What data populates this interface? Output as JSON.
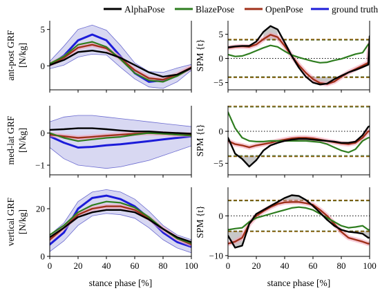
{
  "legend": [
    {
      "label": "AlphaPose",
      "color": "#000000"
    },
    {
      "label": "BlazePose",
      "color": "#2e7d1f"
    },
    {
      "label": "OpenPose",
      "color": "#a0301a"
    },
    {
      "label": "ground truth",
      "color": "#1c1cd9"
    }
  ],
  "colors": {
    "alphapose": "#000000",
    "blazepose": "#2e7d1f",
    "openpose": "#a0301a",
    "ground_truth": "#1c1cd9",
    "threshold": "#556b2f",
    "sig_fill": "#c8c8c8",
    "band_fill": "#b8b8e8"
  },
  "xlabel": "stance phase [%]",
  "chart_data": [
    {
      "type": "line",
      "panel": "ant-post GRF",
      "ylabel_lines": [
        "ant-post GRF",
        "[N/kg]"
      ],
      "xlim": [
        0,
        100
      ],
      "ylim": [
        -3.3,
        6.2
      ],
      "xticks": [
        0,
        20,
        40,
        60,
        80,
        100
      ],
      "yticks": [
        0,
        5
      ],
      "ytick_labels": [
        "0",
        "5"
      ],
      "x": [
        0,
        10,
        20,
        30,
        40,
        50,
        60,
        70,
        80,
        90,
        100
      ],
      "series": [
        {
          "name": "ground truth",
          "values": [
            0.1,
            1.4,
            3.5,
            4.3,
            3.5,
            1.3,
            -1.0,
            -2.2,
            -2.0,
            -1.3,
            -0.3
          ]
        },
        {
          "name": "AlphaPose",
          "values": [
            0.1,
            0.8,
            1.9,
            2.1,
            1.8,
            1.1,
            0.1,
            -0.9,
            -1.5,
            -1.2,
            -0.3
          ]
        },
        {
          "name": "BlazePose",
          "values": [
            0.3,
            1.3,
            2.9,
            3.3,
            2.6,
            0.9,
            -1.0,
            -2.0,
            -2.2,
            -1.4,
            -0.3
          ]
        },
        {
          "name": "OpenPose",
          "values": [
            0.2,
            1.1,
            2.5,
            2.9,
            2.4,
            1.0,
            -0.6,
            -1.7,
            -1.9,
            -1.2,
            -0.2
          ]
        }
      ],
      "band": {
        "upper": [
          0.6,
          2.7,
          5.0,
          5.6,
          4.9,
          2.8,
          0.4,
          -0.8,
          -0.9,
          -0.3,
          0.2
        ],
        "lower": [
          -0.4,
          0.1,
          1.2,
          1.6,
          1.5,
          -0.2,
          -1.8,
          -2.9,
          -3.1,
          -2.2,
          -0.6
        ]
      }
    },
    {
      "type": "line",
      "panel": "ant-post SPM",
      "ylabel": "SPM {t}",
      "xlim": [
        0,
        100
      ],
      "ylim": [
        -6.5,
        7.8
      ],
      "xticks": [
        0,
        20,
        40,
        60,
        80,
        100
      ],
      "yticks": [
        -5,
        0,
        5
      ],
      "thresholds": {
        "AlphaPose": 3.8,
        "BlazePose": 3.9
      },
      "x": [
        0,
        5,
        10,
        15,
        20,
        25,
        30,
        35,
        40,
        45,
        50,
        55,
        60,
        65,
        70,
        75,
        80,
        85,
        90,
        95,
        99,
        100
      ],
      "series": [
        {
          "name": "AlphaPose",
          "values": [
            2.3,
            2.5,
            2.6,
            2.6,
            3.5,
            5.5,
            6.7,
            6.0,
            3.3,
            0.5,
            -1.9,
            -3.8,
            -5.0,
            -5.4,
            -5.2,
            -4.3,
            -3.6,
            -2.9,
            -2.4,
            -1.8,
            -1.3,
            4.6
          ]
        },
        {
          "name": "BlazePose",
          "values": [
            0.8,
            0.4,
            0.5,
            1.0,
            1.6,
            2.2,
            2.7,
            2.4,
            1.5,
            0.7,
            0.2,
            -0.2,
            -0.6,
            -0.9,
            -0.8,
            -0.4,
            -0.1,
            0.4,
            0.9,
            1.2,
            2.9,
            3.0
          ]
        },
        {
          "name": "OpenPose",
          "values": [
            2.2,
            2.4,
            2.5,
            2.4,
            2.9,
            4.0,
            4.9,
            4.4,
            2.6,
            0.5,
            -1.4,
            -3.0,
            -4.3,
            -5.1,
            -5.3,
            -4.8,
            -3.8,
            -2.9,
            -2.2,
            -1.5,
            -0.9,
            3.2
          ]
        }
      ]
    },
    {
      "type": "line",
      "panel": "med-lat GRF",
      "ylabel_lines": [
        "med-lat GRF",
        "[N/kg]"
      ],
      "xlim": [
        0,
        100
      ],
      "ylim": [
        -1.3,
        0.85
      ],
      "xticks": [
        0,
        20,
        40,
        60,
        80,
        100
      ],
      "yticks": [
        -1,
        0
      ],
      "x": [
        0,
        10,
        20,
        30,
        40,
        50,
        60,
        70,
        80,
        90,
        100
      ],
      "series": [
        {
          "name": "ground truth",
          "values": [
            -0.1,
            -0.3,
            -0.45,
            -0.43,
            -0.38,
            -0.35,
            -0.3,
            -0.25,
            -0.2,
            -0.15,
            -0.1
          ]
        },
        {
          "name": "AlphaPose",
          "values": [
            0.1,
            0.12,
            0.15,
            0.15,
            0.12,
            0.08,
            0.05,
            0.05,
            0.02,
            0.0,
            -0.02
          ]
        },
        {
          "name": "BlazePose",
          "values": [
            0.0,
            -0.15,
            -0.25,
            -0.2,
            -0.15,
            -0.12,
            -0.05,
            0.0,
            -0.02,
            -0.05,
            -0.08
          ]
        },
        {
          "name": "OpenPose",
          "values": [
            -0.05,
            -0.1,
            -0.15,
            -0.12,
            -0.08,
            -0.05,
            -0.02,
            0.0,
            -0.02,
            -0.05,
            -0.05
          ]
        }
      ],
      "band": {
        "upper": [
          0.35,
          0.5,
          0.55,
          0.55,
          0.5,
          0.45,
          0.4,
          0.35,
          0.3,
          0.25,
          0.2
        ],
        "lower": [
          -0.45,
          -0.8,
          -1.0,
          -1.05,
          -1.1,
          -1.05,
          -0.95,
          -0.85,
          -0.7,
          -0.55,
          -0.4
        ]
      }
    },
    {
      "type": "line",
      "panel": "med-lat SPM",
      "ylabel": "SPM {t}",
      "xlim": [
        0,
        100
      ],
      "ylim": [
        -6.8,
        4.0
      ],
      "xticks": [
        0,
        20,
        40,
        60,
        80,
        100
      ],
      "yticks": [
        -5,
        0
      ],
      "thresholds": {
        "AlphaPose": -3.8,
        "BlazePose": 3.5
      },
      "x": [
        0,
        5,
        10,
        15,
        20,
        25,
        30,
        35,
        40,
        45,
        50,
        55,
        60,
        65,
        70,
        75,
        80,
        85,
        90,
        95,
        99,
        100
      ],
      "series": [
        {
          "name": "AlphaPose",
          "values": [
            -1.0,
            -3.5,
            -4.3,
            -5.5,
            -4.5,
            -3.0,
            -2.2,
            -1.8,
            -1.5,
            -1.3,
            -1.2,
            -1.2,
            -1.3,
            -1.4,
            -1.5,
            -1.6,
            -1.8,
            -1.8,
            -1.6,
            -0.6,
            0.7,
            0.8
          ]
        },
        {
          "name": "BlazePose",
          "values": [
            3.0,
            0.5,
            -1.0,
            -1.5,
            -1.6,
            -1.6,
            -1.5,
            -1.5,
            -1.5,
            -1.5,
            -1.5,
            -1.5,
            -1.6,
            -1.7,
            -2.0,
            -2.5,
            -3.0,
            -3.3,
            -2.8,
            -1.5,
            -1.0,
            -1.0
          ]
        },
        {
          "name": "OpenPose",
          "values": [
            -1.5,
            -2.0,
            -2.2,
            -2.5,
            -2.2,
            -2.0,
            -1.8,
            -1.5,
            -1.3,
            -1.1,
            -1.0,
            -1.0,
            -1.1,
            -1.3,
            -1.5,
            -1.7,
            -1.9,
            -2.0,
            -1.8,
            -1.0,
            0.0,
            0.0
          ]
        }
      ]
    },
    {
      "type": "line",
      "panel": "vertical GRF",
      "ylabel_lines": [
        "vertical GRF",
        "[N/kg]"
      ],
      "xlim": [
        0,
        100
      ],
      "ylim": [
        0,
        29
      ],
      "xticks": [
        0,
        20,
        40,
        60,
        80,
        100
      ],
      "yticks": [
        0,
        20
      ],
      "x": [
        0,
        10,
        20,
        30,
        40,
        50,
        60,
        70,
        80,
        90,
        100
      ],
      "series": [
        {
          "name": "ground truth",
          "values": [
            5,
            10,
            20,
            24.5,
            25.5,
            24,
            21,
            16,
            10,
            6,
            4
          ]
        },
        {
          "name": "AlphaPose",
          "values": [
            8,
            12,
            16.5,
            18.5,
            19.5,
            19.5,
            18.5,
            15.5,
            11.5,
            8,
            6
          ]
        },
        {
          "name": "BlazePose",
          "values": [
            9,
            13,
            18.5,
            21.5,
            23,
            22.5,
            20.5,
            16.5,
            11.5,
            7.5,
            5.5
          ]
        },
        {
          "name": "OpenPose",
          "values": [
            7,
            12,
            17.5,
            20,
            21,
            21,
            19.5,
            16,
            11.5,
            7.5,
            5
          ]
        }
      ],
      "band": {
        "upper": [
          9,
          14,
          23,
          27,
          28,
          27,
          24,
          19,
          13,
          9,
          7
        ],
        "lower": [
          2,
          6.5,
          13,
          17,
          18,
          17.5,
          16,
          12,
          7,
          3.5,
          1.5
        ]
      }
    },
    {
      "type": "line",
      "panel": "vertical SPM",
      "ylabel": "SPM {t}",
      "xlim": [
        0,
        100
      ],
      "ylim": [
        -10.2,
        7.2
      ],
      "xticks": [
        0,
        20,
        40,
        60,
        80,
        100
      ],
      "yticks": [
        -10,
        0
      ],
      "thresholds": {
        "AlphaPose": 3.8,
        "BlazePose": -3.9
      },
      "x": [
        0,
        5,
        10,
        15,
        20,
        25,
        30,
        35,
        40,
        45,
        50,
        55,
        60,
        65,
        70,
        75,
        80,
        85,
        90,
        95,
        99,
        100
      ],
      "series": [
        {
          "name": "AlphaPose",
          "values": [
            -5.0,
            -8.0,
            -7.5,
            -2.0,
            0.5,
            1.5,
            2.5,
            3.5,
            4.5,
            5.2,
            5.0,
            4.0,
            2.5,
            0.8,
            -1.0,
            -2.5,
            -3.5,
            -4.0,
            -4.2,
            -4.5,
            -5.5,
            -5.5
          ]
        },
        {
          "name": "BlazePose",
          "values": [
            -3.5,
            -3.2,
            -3.0,
            -1.5,
            -0.5,
            0.0,
            0.5,
            1.0,
            1.5,
            2.0,
            2.2,
            2.0,
            1.5,
            0.5,
            -0.5,
            -1.5,
            -2.5,
            -3.0,
            -2.8,
            -2.5,
            -3.5,
            -3.5
          ]
        },
        {
          "name": "OpenPose",
          "values": [
            -7.0,
            -6.5,
            -5.5,
            -2.0,
            0.0,
            1.2,
            2.2,
            3.0,
            3.4,
            3.5,
            3.5,
            3.2,
            2.8,
            1.5,
            0.0,
            -2.0,
            -4.0,
            -5.5,
            -6.0,
            -6.5,
            -7.0,
            -7.0
          ]
        }
      ]
    }
  ]
}
